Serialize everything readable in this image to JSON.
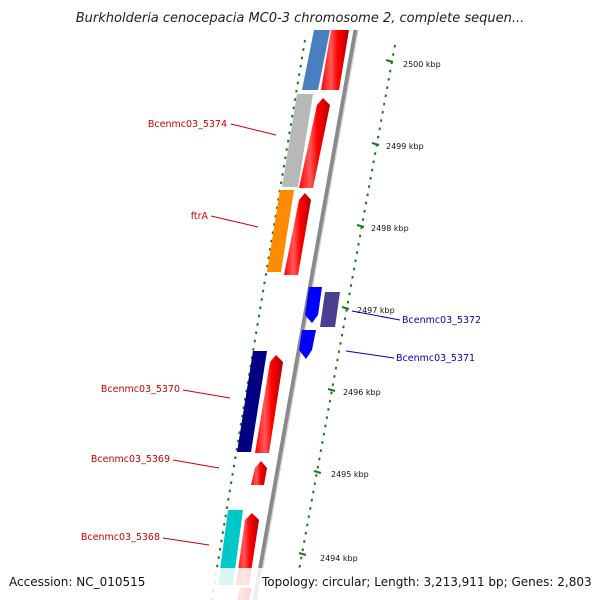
{
  "header": {
    "title": "Burkholderia cenocepacia MC0-3 chromosome 2, complete sequen..."
  },
  "footer": {
    "accession": "Accession: NC_010515",
    "topology": "Topology: circular; Length: 3,213,911 bp; Genes: 2,803"
  },
  "scale": {
    "ticks": [
      "2500 kbp",
      "2499 kbp",
      "2498 kbp",
      "2497 kbp",
      "2496 kbp",
      "2495 kbp",
      "2494 kbp"
    ]
  },
  "colors": {
    "forward_cds": "#ff0000",
    "label_forward": "#cc0000",
    "label_reverse": "#0000bb",
    "tick_green": "#1a7a1a",
    "backbone": "#8a8a8a"
  },
  "genes": [
    {
      "label": "",
      "color": "#4a7fbf"
    },
    {
      "label": "Bcenmc03_5374",
      "color": "#b8b8b8"
    },
    {
      "label": "ftrA",
      "color": "#ff8c00"
    },
    {
      "label": "Bcenmc03_5372",
      "color": "#4b3f8f"
    },
    {
      "label": "Bcenmc03_5371",
      "color": "#0000ff"
    },
    {
      "label": "Bcenmc03_5370",
      "color": "#000080"
    },
    {
      "label": "Bcenmc03_5369",
      "color": "#ff0000"
    },
    {
      "label": "Bcenmc03_5368",
      "color": "#00c8c8"
    }
  ]
}
